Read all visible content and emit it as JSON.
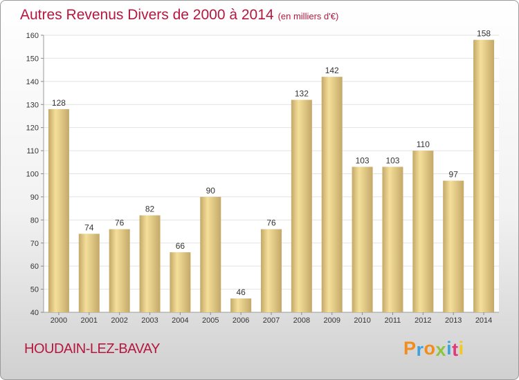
{
  "chart_data": {
    "type": "bar",
    "title": "Autres Revenus Divers de 2000 à 2014",
    "subtitle": "(en milliers d'€)",
    "categories": [
      "2000",
      "2001",
      "2002",
      "2003",
      "2004",
      "2005",
      "2006",
      "2007",
      "2008",
      "2009",
      "2010",
      "2011",
      "2012",
      "2013",
      "2014"
    ],
    "values": [
      128,
      74,
      76,
      82,
      66,
      90,
      46,
      76,
      132,
      142,
      103,
      103,
      110,
      97,
      158
    ],
    "ylim": [
      40,
      160
    ],
    "yticks": [
      40,
      50,
      60,
      70,
      80,
      90,
      100,
      110,
      120,
      130,
      140,
      150,
      160
    ],
    "grid": true,
    "colors": {
      "bar_light": "#f4df9a",
      "bar_dark": "#c4a868",
      "title": "#b5173f",
      "grid": "#e2e2e2"
    }
  },
  "footer": {
    "commune": "HOUDAIN-LEZ-BAVAY",
    "brand": "Proxiti",
    "brand_colors": [
      "#f28c1c",
      "#3aa3e0",
      "#f28c1c",
      "#8cc63f",
      "#3aa3e0",
      "#e03a7a",
      "#f2c91c"
    ]
  }
}
